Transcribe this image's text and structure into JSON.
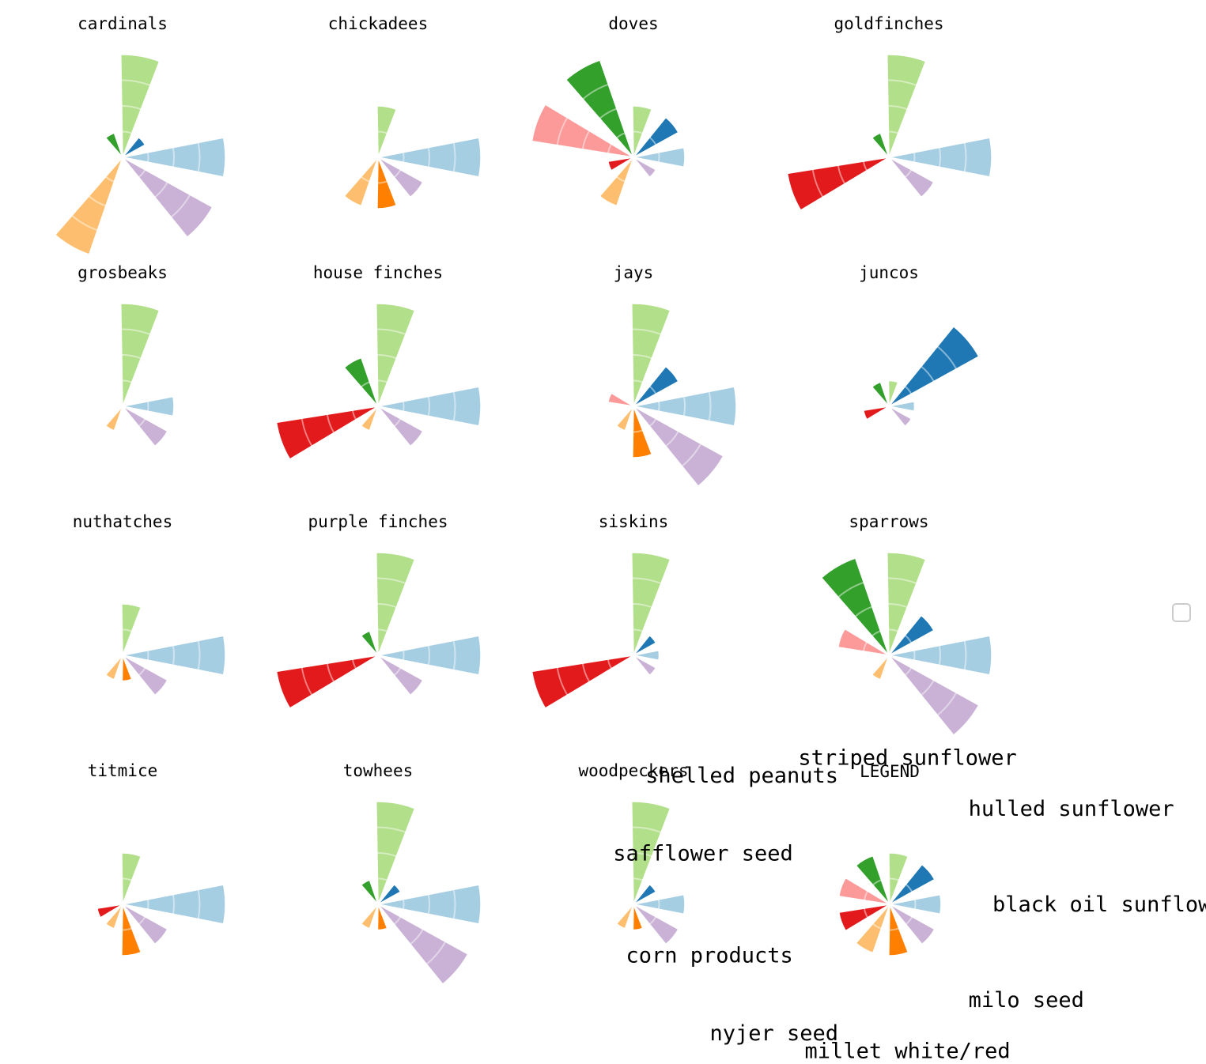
{
  "chart_data": {
    "type": "polar-bar",
    "legend_title": "LEGEND",
    "seeds": [
      {
        "key": "black_oil",
        "label": "black oil sunflower",
        "color": "#a6cee3"
      },
      {
        "key": "hulled",
        "label": "hulled sunflower",
        "color": "#1f78b4"
      },
      {
        "key": "striped",
        "label": "striped sunflower",
        "color": "#b2df8a"
      },
      {
        "key": "peanuts",
        "label": "shelled peanuts",
        "color": "#33a02c"
      },
      {
        "key": "safflower",
        "label": "safflower seed",
        "color": "#fb9a99"
      },
      {
        "key": "corn",
        "label": "corn products",
        "color": "#e31a1c"
      },
      {
        "key": "nyjer",
        "label": "nyjer seed",
        "color": "#fdbf6f"
      },
      {
        "key": "millet",
        "label": "millet white/red",
        "color": "#ff7f00"
      },
      {
        "key": "milo",
        "label": "milo seed",
        "color": "#cab2d6"
      }
    ],
    "panels": [
      {
        "title": "cardinals",
        "values": [
          4,
          1,
          4,
          1,
          0,
          0,
          4,
          0,
          4
        ]
      },
      {
        "title": "chickadees",
        "values": [
          4,
          0,
          2,
          0,
          0,
          0,
          2,
          2,
          2
        ]
      },
      {
        "title": "doves",
        "values": [
          2,
          2,
          2,
          4,
          4,
          1,
          2,
          0,
          1
        ]
      },
      {
        "title": "goldfinches",
        "values": [
          4,
          0,
          4,
          1,
          0,
          4,
          0,
          0,
          2
        ]
      },
      {
        "title": "grosbeaks",
        "values": [
          2,
          0,
          4,
          0,
          0,
          0,
          1,
          0,
          2
        ]
      },
      {
        "title": "house finches",
        "values": [
          4,
          0,
          4,
          2,
          0,
          4,
          1,
          0,
          2
        ]
      },
      {
        "title": "jays",
        "values": [
          4,
          2,
          4,
          0,
          1,
          0,
          1,
          2,
          4
        ]
      },
      {
        "title": "juncos",
        "values": [
          1,
          4,
          1,
          1,
          0,
          1,
          0,
          0,
          1
        ]
      },
      {
        "title": "nuthatches",
        "values": [
          4,
          0,
          2,
          0,
          0,
          0,
          1,
          1,
          2
        ]
      },
      {
        "title": "purple finches",
        "values": [
          4,
          0,
          4,
          1,
          0,
          4,
          0,
          0,
          2
        ]
      },
      {
        "title": "siskins",
        "values": [
          1,
          1,
          4,
          0,
          0,
          4,
          0,
          0,
          1
        ]
      },
      {
        "title": "sparrows",
        "values": [
          4,
          2,
          4,
          4,
          2,
          0,
          1,
          0,
          4
        ]
      },
      {
        "title": "titmice",
        "values": [
          4,
          0,
          2,
          0,
          0,
          1,
          1,
          2,
          2
        ]
      },
      {
        "title": "towhees",
        "values": [
          4,
          1,
          4,
          1,
          0,
          0,
          1,
          1,
          4
        ]
      },
      {
        "title": "woodpeckers",
        "values": [
          2,
          1,
          4,
          0,
          0,
          0,
          1,
          1,
          2
        ]
      }
    ]
  }
}
